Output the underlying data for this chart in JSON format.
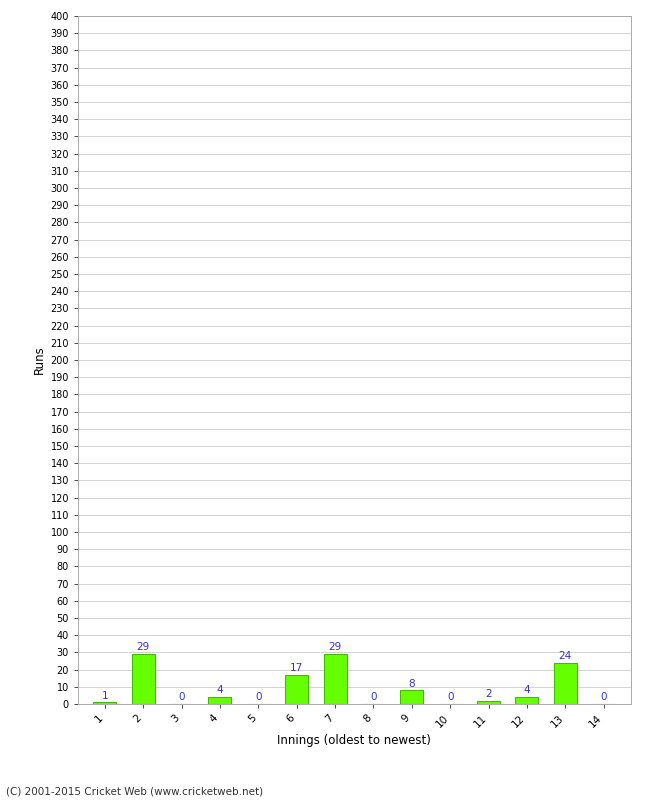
{
  "xlabel": "Innings (oldest to newest)",
  "ylabel": "Runs",
  "categories": [
    "1",
    "2",
    "3",
    "4",
    "5",
    "6",
    "7",
    "8",
    "9",
    "10",
    "11",
    "12",
    "13",
    "14"
  ],
  "values": [
    1,
    29,
    0,
    4,
    0,
    17,
    29,
    0,
    8,
    0,
    2,
    4,
    24,
    0
  ],
  "bar_color": "#66ff00",
  "bar_edge_color": "#44bb00",
  "label_color": "#3333cc",
  "ylim": [
    0,
    400
  ],
  "ytick_step": 10,
  "background_color": "#ffffff",
  "grid_color": "#cccccc",
  "footer": "(C) 2001-2015 Cricket Web (www.cricketweb.net)"
}
